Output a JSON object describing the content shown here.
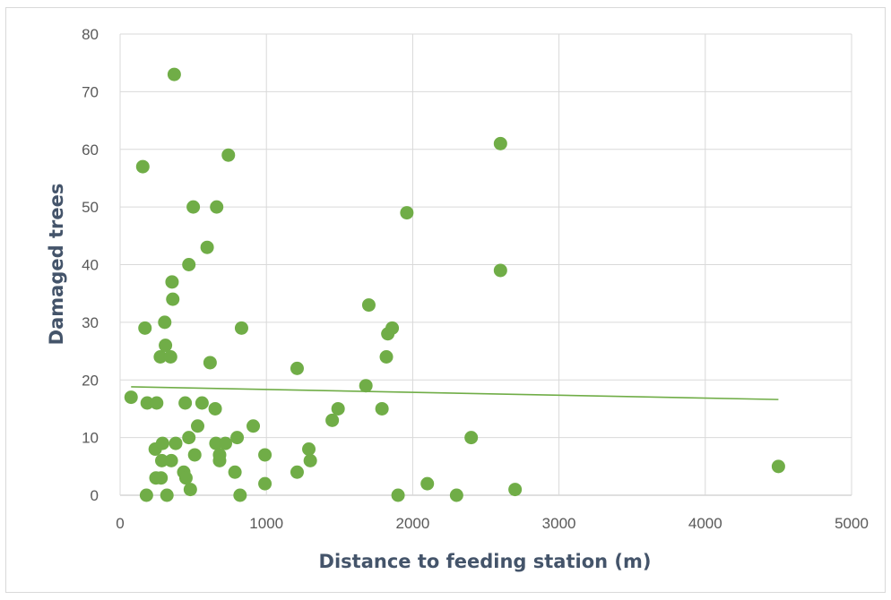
{
  "chart_data": {
    "type": "scatter",
    "title": "",
    "xlabel": "Distance to feeding station (m)",
    "ylabel": "Damaged trees",
    "xlim": [
      0,
      5000
    ],
    "ylim": [
      0,
      80
    ],
    "x_ticks": [
      0,
      1000,
      2000,
      3000,
      4000,
      5000
    ],
    "y_ticks": [
      0,
      10,
      20,
      30,
      40,
      50,
      60,
      70,
      80
    ],
    "grid": true,
    "legend": "none",
    "series": [
      {
        "marker_color": "#70ad47",
        "points": [
          [
            75,
            17
          ],
          [
            155,
            57
          ],
          [
            170,
            29
          ],
          [
            180,
            0
          ],
          [
            185,
            16
          ],
          [
            240,
            8
          ],
          [
            245,
            3
          ],
          [
            250,
            16
          ],
          [
            275,
            24
          ],
          [
            280,
            3
          ],
          [
            285,
            6
          ],
          [
            290,
            9
          ],
          [
            305,
            30
          ],
          [
            310,
            26
          ],
          [
            320,
            0
          ],
          [
            345,
            24
          ],
          [
            350,
            6
          ],
          [
            355,
            37
          ],
          [
            360,
            34
          ],
          [
            370,
            73
          ],
          [
            380,
            9
          ],
          [
            435,
            4
          ],
          [
            445,
            16
          ],
          [
            450,
            3
          ],
          [
            470,
            40
          ],
          [
            470,
            10
          ],
          [
            480,
            1
          ],
          [
            500,
            50
          ],
          [
            510,
            7
          ],
          [
            530,
            12
          ],
          [
            560,
            16
          ],
          [
            595,
            43
          ],
          [
            615,
            23
          ],
          [
            650,
            15
          ],
          [
            655,
            9
          ],
          [
            660,
            50
          ],
          [
            680,
            7
          ],
          [
            680,
            6
          ],
          [
            720,
            9
          ],
          [
            740,
            59
          ],
          [
            785,
            4
          ],
          [
            800,
            10
          ],
          [
            820,
            0
          ],
          [
            830,
            29
          ],
          [
            910,
            12
          ],
          [
            990,
            7
          ],
          [
            990,
            2
          ],
          [
            1210,
            22
          ],
          [
            1210,
            4
          ],
          [
            1290,
            8
          ],
          [
            1300,
            6
          ],
          [
            1450,
            13
          ],
          [
            1490,
            15
          ],
          [
            1680,
            19
          ],
          [
            1700,
            33
          ],
          [
            1790,
            15
          ],
          [
            1820,
            24
          ],
          [
            1830,
            28
          ],
          [
            1860,
            29
          ],
          [
            1900,
            0
          ],
          [
            1960,
            49
          ],
          [
            2100,
            2
          ],
          [
            2300,
            0
          ],
          [
            2400,
            10
          ],
          [
            2600,
            61
          ],
          [
            2600,
            39
          ],
          [
            2700,
            1
          ],
          [
            4500,
            5
          ]
        ]
      }
    ],
    "trendline": {
      "type": "linear",
      "color": "#70ad47",
      "x": [
        75,
        4500
      ],
      "y": [
        18.8,
        16.6
      ]
    }
  }
}
